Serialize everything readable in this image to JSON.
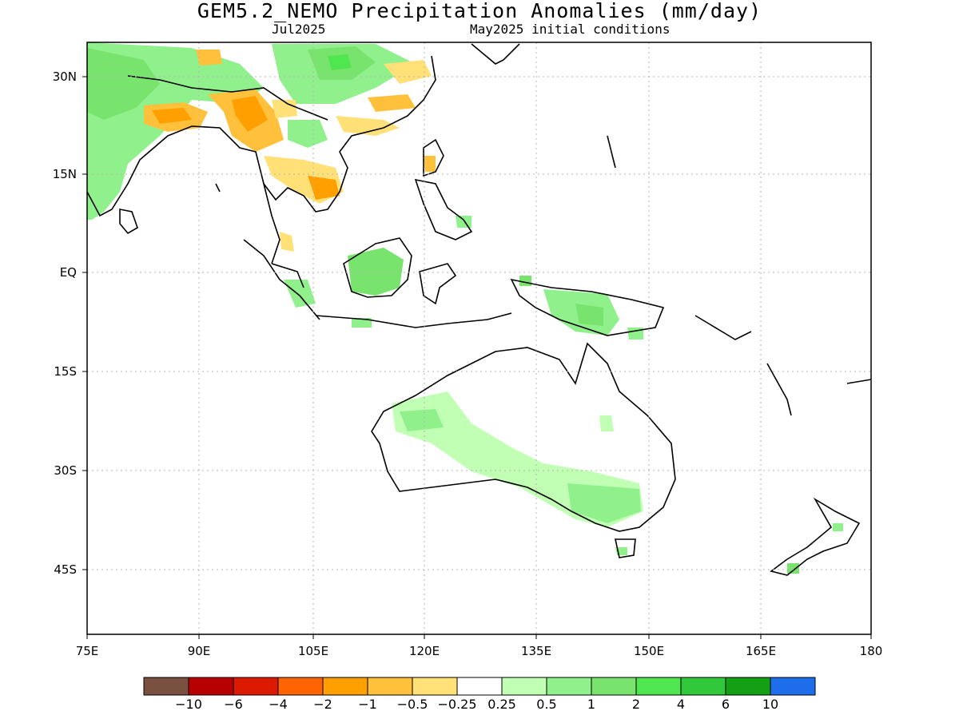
{
  "title": "GEM5.2_NEMO Precipitation Anomalies (mm/day)",
  "valid_month": "Jul2025",
  "initial_conditions": "May2025 initial conditions",
  "lat_ticks": [
    "30N",
    "15N",
    "EQ",
    "15S",
    "30S",
    "45S"
  ],
  "lon_ticks": [
    "75E",
    "90E",
    "105E",
    "120E",
    "135E",
    "150E",
    "165E",
    "180"
  ],
  "colorbar": {
    "colors": [
      "#7a5140",
      "#b80000",
      "#dc1a00",
      "#ff6400",
      "#ffa000",
      "#ffc03c",
      "#ffe178",
      "#ffffff",
      "#c0ffb4",
      "#90f08c",
      "#78e46e",
      "#50e650",
      "#32c83c",
      "#14a014",
      "#1e6eeb"
    ],
    "labels": [
      "-10",
      "-6",
      "-4",
      "-2",
      "-1",
      "-0.5",
      "-0.25",
      "0.25",
      "0.5",
      "1",
      "2",
      "4",
      "6",
      "10"
    ]
  },
  "grid": true,
  "map": {
    "lon_range": [
      "75E",
      "180"
    ],
    "lat_range": [
      "~53S",
      "~35N"
    ]
  }
}
